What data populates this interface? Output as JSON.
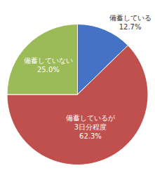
{
  "chart_data": {
    "type": "pie",
    "categories": [
      "備蓄している",
      "備蓄しているが\n3日分程度",
      "備蓄していない"
    ],
    "values": [
      12.7,
      62.3,
      25.0
    ],
    "value_labels": [
      "12.7%",
      "62.3%",
      "25.0%"
    ],
    "colors": [
      "#4472c4",
      "#c0504d",
      "#9bbb59"
    ],
    "data_labels": true
  }
}
